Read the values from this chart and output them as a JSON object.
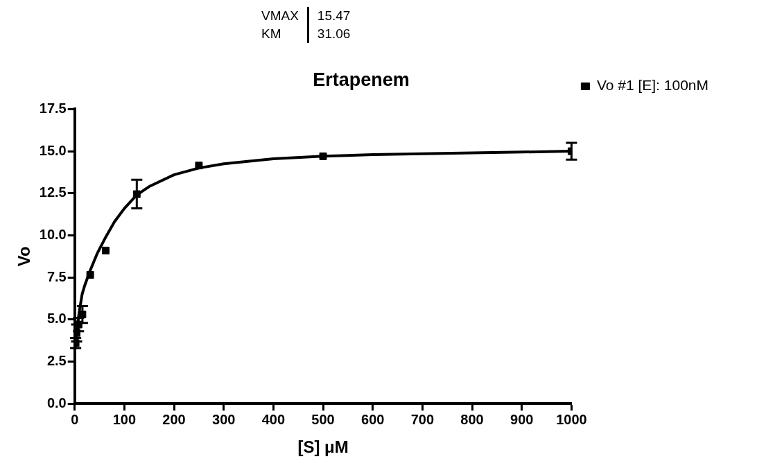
{
  "chart_data": {
    "type": "scatter",
    "title": "Ertapenem",
    "xlabel": "[S] μM",
    "ylabel": "Vo",
    "annotations": [
      "VMAX",
      "15.47",
      "KM",
      "31.06"
    ],
    "series": [
      {
        "name": "Vo #1 [E]: 100nM",
        "color": "#000000",
        "marker": "square",
        "x": [
          1.95,
          3.9,
          7.8,
          15.6,
          31.25,
          62.5,
          125,
          250,
          500,
          1000
        ],
        "values": [
          3.6,
          4.2,
          4.7,
          5.3,
          7.65,
          9.1,
          12.45,
          14.15,
          14.7,
          15.0
        ],
        "errors": [
          0.3,
          0.5,
          0.4,
          0.5,
          null,
          null,
          0.85,
          null,
          null,
          0.5
        ]
      },
      {
        "type": "line",
        "color": "#000000",
        "marker": "none",
        "line_style": "solid",
        "x": [
          2,
          5,
          10,
          15,
          20,
          31,
          45,
          62.5,
          80,
          100,
          125,
          150,
          200,
          250,
          300,
          400,
          500,
          600,
          700,
          800,
          900,
          1000
        ],
        "values": [
          3.6,
          4.6,
          5.6,
          6.5,
          7.0,
          7.9,
          8.9,
          9.9,
          10.8,
          11.6,
          12.4,
          12.9,
          13.6,
          14.0,
          14.25,
          14.55,
          14.7,
          14.8,
          14.85,
          14.9,
          14.95,
          15.0
        ]
      }
    ],
    "xlim": [
      0,
      1000
    ],
    "xticks": [
      0,
      100,
      200,
      300,
      400,
      500,
      600,
      700,
      800,
      900,
      1000
    ],
    "ylim": [
      0,
      17.5
    ],
    "yticks": [
      {
        "value": 0,
        "label": "0.0"
      },
      {
        "value": 2.5,
        "label": "2.5"
      },
      {
        "value": 5,
        "label": "5.0"
      },
      {
        "value": 7.5,
        "label": "7.5"
      },
      {
        "value": 10,
        "label": "10.0"
      },
      {
        "value": 12.5,
        "label": "12.5"
      },
      {
        "value": 15,
        "label": "15.0"
      },
      {
        "value": 17.5,
        "label": "17.5"
      }
    ],
    "grid": false,
    "legend": "top right"
  }
}
